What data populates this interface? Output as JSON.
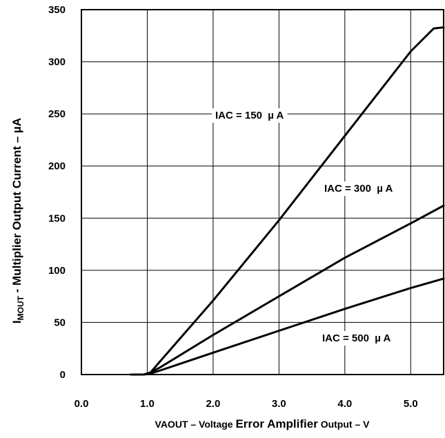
{
  "chart_data": {
    "type": "line",
    "grid": true,
    "xlim": [
      0.0,
      5.5
    ],
    "ylim": [
      0,
      350
    ],
    "x_ticks": [
      "0.0",
      "1.0",
      "2.0",
      "3.0",
      "4.0",
      "5.0"
    ],
    "y_ticks": [
      "0",
      "50",
      "100",
      "150",
      "200",
      "250",
      "300",
      "350"
    ],
    "xlabel": {
      "part1": "VAOUT – Voltage ",
      "part2": "Error Amplifier",
      "part3": " Output – V"
    },
    "ylabel": {
      "sub": "I",
      "subscript": "MOUT",
      "rest": " - Multiplier Output Current – µA"
    },
    "series": [
      {
        "name": "IAC = 150  µ A",
        "points": [
          [
            0.75,
            0
          ],
          [
            0.95,
            0
          ],
          [
            1.05,
            2
          ],
          [
            1.2,
            13
          ],
          [
            2.0,
            71
          ],
          [
            3.0,
            148
          ],
          [
            4.0,
            229
          ],
          [
            5.0,
            310
          ],
          [
            5.35,
            332
          ],
          [
            5.5,
            333
          ]
        ]
      },
      {
        "name": "IAC = 300  µ A",
        "points": [
          [
            0.75,
            0
          ],
          [
            0.95,
            0
          ],
          [
            1.05,
            2
          ],
          [
            1.2,
            7
          ],
          [
            2.0,
            38
          ],
          [
            3.0,
            75
          ],
          [
            4.0,
            112
          ],
          [
            5.0,
            145
          ],
          [
            5.5,
            162
          ]
        ]
      },
      {
        "name": "IAC = 500  µ A",
        "points": [
          [
            0.75,
            0
          ],
          [
            0.95,
            0
          ],
          [
            1.05,
            1
          ],
          [
            1.2,
            4
          ],
          [
            2.0,
            21
          ],
          [
            3.0,
            42
          ],
          [
            4.0,
            63
          ],
          [
            5.0,
            83
          ],
          [
            5.5,
            92
          ]
        ]
      }
    ]
  }
}
